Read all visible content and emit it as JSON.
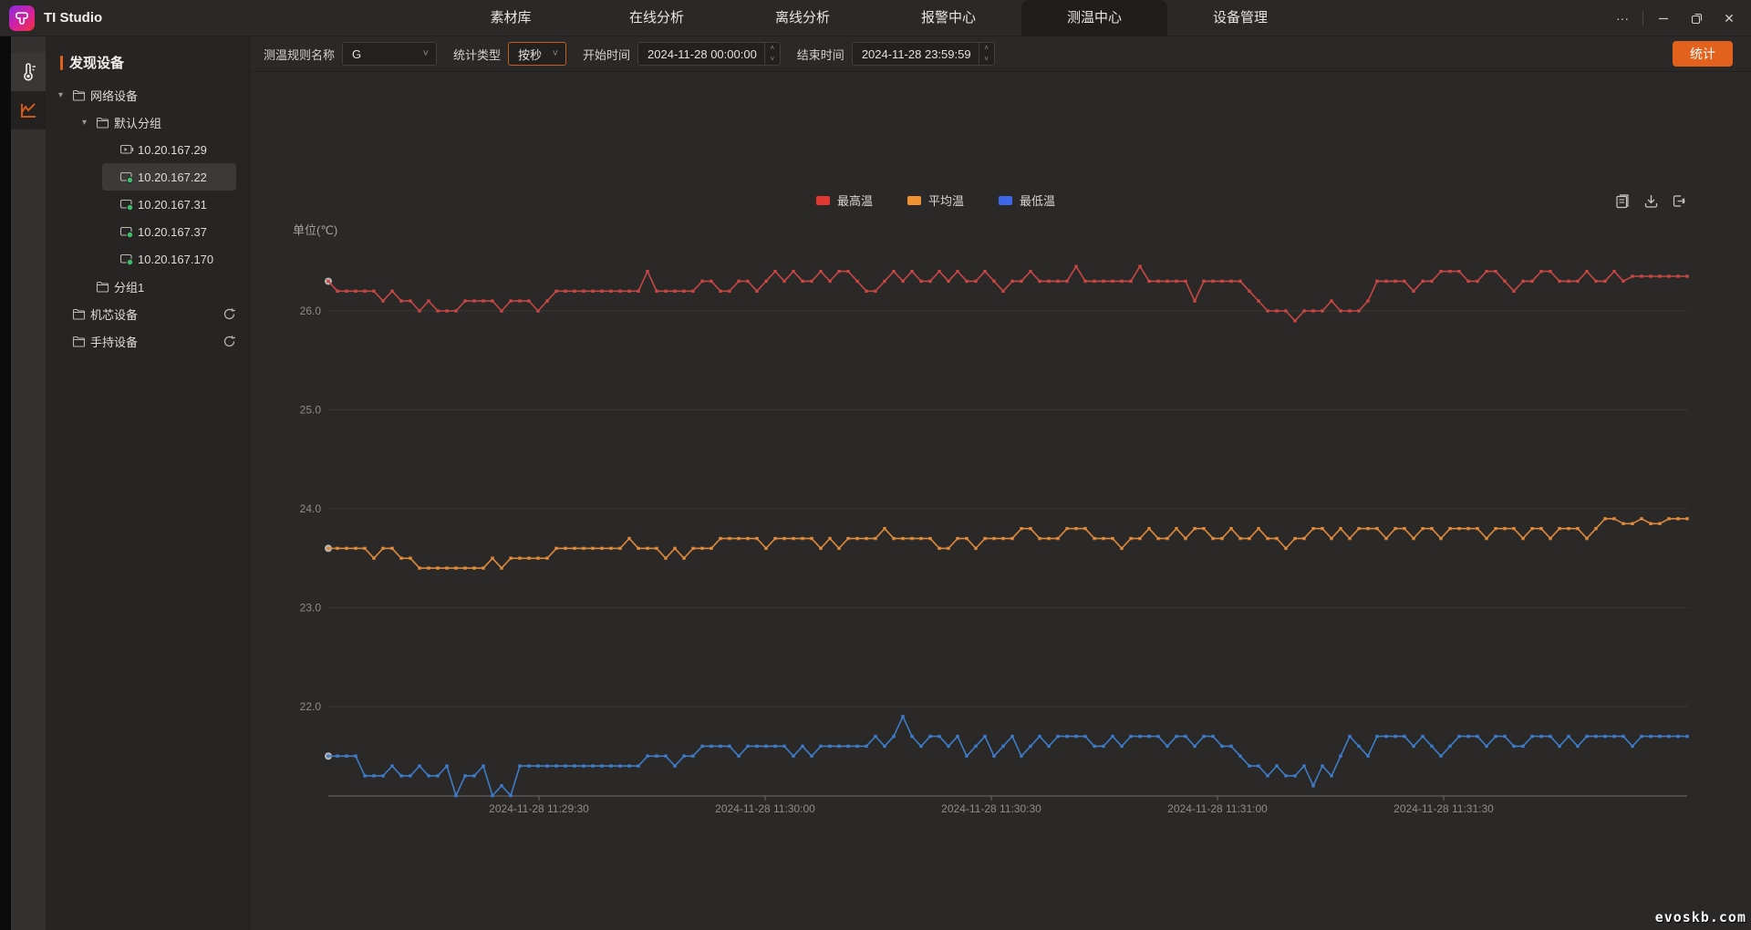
{
  "window": {
    "title": "TI Studio"
  },
  "nav": {
    "active_index": 4,
    "tabs": [
      {
        "label": "素材库"
      },
      {
        "label": "在线分析"
      },
      {
        "label": "离线分析"
      },
      {
        "label": "报警中心"
      },
      {
        "label": "测温中心"
      },
      {
        "label": "设备管理"
      }
    ]
  },
  "rail": {
    "items": [
      {
        "icon": "thermometer-icon"
      },
      {
        "icon": "line-chart-icon",
        "active": true
      }
    ]
  },
  "device_panel": {
    "header": "发现设备",
    "tree": [
      {
        "depth": 0,
        "caret": true,
        "icon": "folder",
        "label": "网络设备"
      },
      {
        "depth": 1,
        "caret": true,
        "icon": "folder",
        "label": "默认分组"
      },
      {
        "depth": 2,
        "caret": false,
        "icon": "camera",
        "label": "10.20.167.29"
      },
      {
        "depth": 2,
        "caret": false,
        "icon": "camera-online",
        "label": "10.20.167.22",
        "selected": true
      },
      {
        "depth": 2,
        "caret": false,
        "icon": "camera-online",
        "label": "10.20.167.31"
      },
      {
        "depth": 2,
        "caret": false,
        "icon": "camera-online",
        "label": "10.20.167.37"
      },
      {
        "depth": 2,
        "caret": false,
        "icon": "camera-online",
        "label": "10.20.167.170"
      },
      {
        "depth": 1,
        "caret": false,
        "icon": "folder",
        "label": "分组1"
      },
      {
        "depth": 0,
        "caret": false,
        "icon": "folder",
        "label": "机芯设备",
        "refresh": true
      },
      {
        "depth": 0,
        "caret": false,
        "icon": "folder",
        "label": "手持设备",
        "refresh": true
      }
    ]
  },
  "toolbar": {
    "rule_label": "测温规则名称",
    "rule_value": "G",
    "stat_type_label": "统计类型",
    "stat_type_value": "按秒",
    "start_label": "开始时间",
    "start_value": "2024-11-28 00:00:00",
    "end_label": "结束时间",
    "end_value": "2024-11-28 23:59:59",
    "stat_button": "统计"
  },
  "colors": {
    "accent": "#e2611c",
    "max_temp_legend": "#df3833",
    "avg_temp_legend": "#ef9232",
    "min_temp_legend": "#3e66e8",
    "max_temp_line": "#c64744",
    "avg_temp_line": "#dd8a3c",
    "min_temp_line": "#3e7cc9",
    "online_green": "#3fbf6e",
    "grid": "#3b3838",
    "axis": "#6f6d6d",
    "tick_text": "#8f8d8b"
  },
  "chart_data": {
    "type": "line",
    "unit_label": "单位(℃)",
    "grid": true,
    "legend_position": "top",
    "yticks": [
      "26.0",
      "25.0",
      "24.0",
      "23.0",
      "22.0"
    ],
    "ylim": [
      21.1,
      27.0
    ],
    "xticks": [
      "2024-11-28 11:29:30",
      "2024-11-28 11:30:00",
      "2024-11-28 11:30:30",
      "2024-11-28 11:31:00",
      "2024-11-28 11:31:30"
    ],
    "series": [
      {
        "id": "max-temp",
        "name": "最高温",
        "color": "#df3833",
        "line_color": "#c64744",
        "values": [
          26.3,
          26.2,
          26.2,
          26.2,
          26.2,
          26.2,
          26.1,
          26.2,
          26.1,
          26.1,
          26.0,
          26.1,
          26.0,
          26.0,
          26.0,
          26.1,
          26.1,
          26.1,
          26.1,
          26.0,
          26.1,
          26.1,
          26.1,
          26.0,
          26.1,
          26.2,
          26.2,
          26.2,
          26.2,
          26.2,
          26.2,
          26.2,
          26.2,
          26.2,
          26.2,
          26.4,
          26.2,
          26.2,
          26.2,
          26.2,
          26.2,
          26.3,
          26.3,
          26.2,
          26.2,
          26.3,
          26.3,
          26.2,
          26.3,
          26.4,
          26.3,
          26.4,
          26.3,
          26.3,
          26.4,
          26.3,
          26.4,
          26.4,
          26.3,
          26.2,
          26.2,
          26.3,
          26.4,
          26.3,
          26.4,
          26.3,
          26.3,
          26.4,
          26.3,
          26.4,
          26.3,
          26.3,
          26.4,
          26.3,
          26.2,
          26.3,
          26.3,
          26.4,
          26.3,
          26.3,
          26.3,
          26.3,
          26.45,
          26.3,
          26.3,
          26.3,
          26.3,
          26.3,
          26.3,
          26.45,
          26.3,
          26.3,
          26.3,
          26.3,
          26.3,
          26.1,
          26.3,
          26.3,
          26.3,
          26.3,
          26.3,
          26.2,
          26.1,
          26.0,
          26.0,
          26.0,
          25.9,
          26.0,
          26.0,
          26.0,
          26.1,
          26.0,
          26.0,
          26.0,
          26.1,
          26.3,
          26.3,
          26.3,
          26.3,
          26.2,
          26.3,
          26.3,
          26.4,
          26.4,
          26.4,
          26.3,
          26.3,
          26.4,
          26.4,
          26.3,
          26.2,
          26.3,
          26.3,
          26.4,
          26.4,
          26.3,
          26.3,
          26.3,
          26.4,
          26.3,
          26.3,
          26.4,
          26.3,
          26.35,
          26.35,
          26.35,
          26.35,
          26.35,
          26.35,
          26.35
        ]
      },
      {
        "id": "avg-temp",
        "name": "平均温",
        "color": "#ef9232",
        "line_color": "#dd8a3c",
        "values": [
          23.6,
          23.6,
          23.6,
          23.6,
          23.6,
          23.5,
          23.6,
          23.6,
          23.5,
          23.5,
          23.4,
          23.4,
          23.4,
          23.4,
          23.4,
          23.4,
          23.4,
          23.4,
          23.5,
          23.4,
          23.5,
          23.5,
          23.5,
          23.5,
          23.5,
          23.6,
          23.6,
          23.6,
          23.6,
          23.6,
          23.6,
          23.6,
          23.6,
          23.7,
          23.6,
          23.6,
          23.6,
          23.5,
          23.6,
          23.5,
          23.6,
          23.6,
          23.6,
          23.7,
          23.7,
          23.7,
          23.7,
          23.7,
          23.6,
          23.7,
          23.7,
          23.7,
          23.7,
          23.7,
          23.6,
          23.7,
          23.6,
          23.7,
          23.7,
          23.7,
          23.7,
          23.8,
          23.7,
          23.7,
          23.7,
          23.7,
          23.7,
          23.6,
          23.6,
          23.7,
          23.7,
          23.6,
          23.7,
          23.7,
          23.7,
          23.7,
          23.8,
          23.8,
          23.7,
          23.7,
          23.7,
          23.8,
          23.8,
          23.8,
          23.7,
          23.7,
          23.7,
          23.6,
          23.7,
          23.7,
          23.8,
          23.7,
          23.7,
          23.8,
          23.7,
          23.8,
          23.8,
          23.7,
          23.7,
          23.8,
          23.7,
          23.7,
          23.8,
          23.7,
          23.7,
          23.6,
          23.7,
          23.7,
          23.8,
          23.8,
          23.7,
          23.8,
          23.7,
          23.8,
          23.8,
          23.8,
          23.7,
          23.8,
          23.8,
          23.7,
          23.8,
          23.8,
          23.7,
          23.8,
          23.8,
          23.8,
          23.8,
          23.7,
          23.8,
          23.8,
          23.8,
          23.7,
          23.8,
          23.8,
          23.7,
          23.8,
          23.8,
          23.8,
          23.7,
          23.8,
          23.9,
          23.9,
          23.85,
          23.85,
          23.9,
          23.85,
          23.85,
          23.9,
          23.9,
          23.9
        ]
      },
      {
        "id": "min-temp",
        "name": "最低温",
        "color": "#3e66e8",
        "line_color": "#3e7cc9",
        "values": [
          21.5,
          21.5,
          21.5,
          21.5,
          21.3,
          21.3,
          21.3,
          21.4,
          21.3,
          21.3,
          21.4,
          21.3,
          21.3,
          21.4,
          21.1,
          21.3,
          21.3,
          21.4,
          21.1,
          21.2,
          21.1,
          21.4,
          21.4,
          21.4,
          21.4,
          21.4,
          21.4,
          21.4,
          21.4,
          21.4,
          21.4,
          21.4,
          21.4,
          21.4,
          21.4,
          21.5,
          21.5,
          21.5,
          21.4,
          21.5,
          21.5,
          21.6,
          21.6,
          21.6,
          21.6,
          21.5,
          21.6,
          21.6,
          21.6,
          21.6,
          21.6,
          21.5,
          21.6,
          21.5,
          21.6,
          21.6,
          21.6,
          21.6,
          21.6,
          21.6,
          21.7,
          21.6,
          21.7,
          21.9,
          21.7,
          21.6,
          21.7,
          21.7,
          21.6,
          21.7,
          21.5,
          21.6,
          21.7,
          21.5,
          21.6,
          21.7,
          21.5,
          21.6,
          21.7,
          21.6,
          21.7,
          21.7,
          21.7,
          21.7,
          21.6,
          21.6,
          21.7,
          21.6,
          21.7,
          21.7,
          21.7,
          21.7,
          21.6,
          21.7,
          21.7,
          21.6,
          21.7,
          21.7,
          21.6,
          21.6,
          21.5,
          21.4,
          21.4,
          21.3,
          21.4,
          21.3,
          21.3,
          21.4,
          21.2,
          21.4,
          21.3,
          21.5,
          21.7,
          21.6,
          21.5,
          21.7,
          21.7,
          21.7,
          21.7,
          21.6,
          21.7,
          21.6,
          21.5,
          21.6,
          21.7,
          21.7,
          21.7,
          21.6,
          21.7,
          21.7,
          21.6,
          21.6,
          21.7,
          21.7,
          21.7,
          21.6,
          21.7,
          21.6,
          21.7,
          21.7,
          21.7,
          21.7,
          21.7,
          21.6,
          21.7,
          21.7,
          21.7,
          21.7,
          21.7,
          21.7
        ]
      }
    ]
  },
  "watermark": "evoskb.com"
}
